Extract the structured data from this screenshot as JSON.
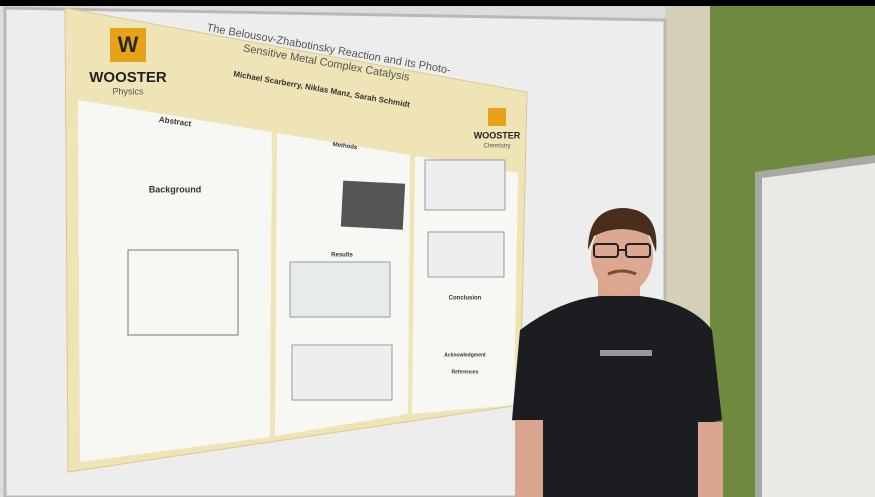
{
  "poster": {
    "logo_left": {
      "name": "WOOSTER",
      "subtitle": "Physics"
    },
    "title": "The Belousov-Zhabotinsky Reaction and its Photo-Sensitive Metal Complex Catalysis",
    "authors": "Michael Scarberry, Niklas Manz, Sarah Schmidt",
    "logo_right": {
      "name": "WOOSTER",
      "subtitle": "Chemistry"
    },
    "sections": [
      "Abstract",
      "Background",
      "Methods",
      "Results",
      "Conclusion",
      "Acknowledgment",
      "References"
    ]
  }
}
